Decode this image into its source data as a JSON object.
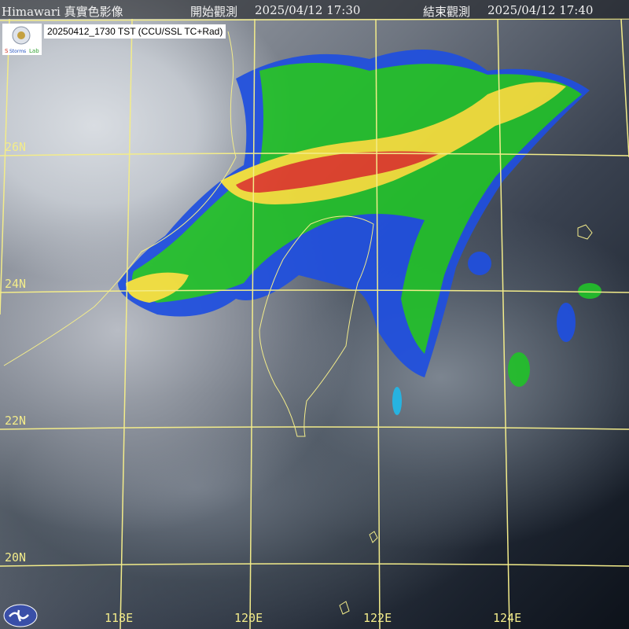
{
  "header": {
    "title": "Himawari 真實色影像",
    "start_label": "開始觀測",
    "start_time": "2025/04/12 17:30",
    "end_label": "結束觀測",
    "end_time": "2025/04/12 17:40"
  },
  "caption": "20250412_1730 TST (CCU/SSL TC+Rad)",
  "logo_text": "Severe Storms Lab",
  "latitudes": [
    "26N",
    "24N",
    "22N",
    "20N"
  ],
  "longitudes": [
    "118E",
    "120E",
    "122E",
    "124E"
  ],
  "colors": {
    "grid": "#f3ec8a",
    "radar_blue": "#1f4fe0",
    "radar_green": "#22c02a",
    "radar_yellow": "#f5e13a",
    "radar_red": "#e4402a"
  }
}
